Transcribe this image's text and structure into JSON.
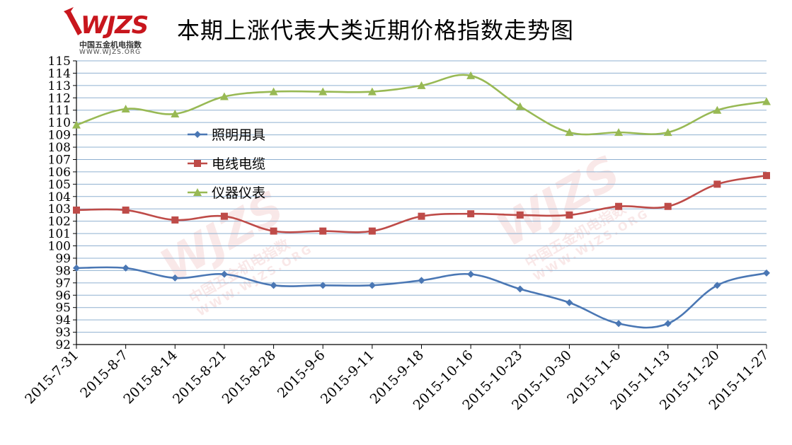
{
  "logo": {
    "wordmark": "WJZS",
    "cn_name": "中国五金机电指数",
    "url": "WWW.WJZS.ORG"
  },
  "colors": {
    "series1": "#4a77b4",
    "series2": "#be4b48",
    "series3": "#98b954",
    "grid": "#8fb0d0",
    "axis": "#000000",
    "brand": "#c8161d"
  },
  "chart_data": {
    "type": "line",
    "title": "本期上涨代表大类近期价格指数走势图",
    "xlabel": "",
    "ylabel": "",
    "ylim": [
      92,
      115
    ],
    "yticks": [
      92,
      93,
      94,
      95,
      96,
      97,
      98,
      99,
      100,
      101,
      102,
      103,
      104,
      105,
      106,
      107,
      108,
      109,
      110,
      111,
      112,
      113,
      114,
      115
    ],
    "grid": true,
    "legend_position": "left-center",
    "categories": [
      "2015-7-31",
      "2015-8-7",
      "2015-8-14",
      "2015-8-21",
      "2015-8-28",
      "2015-9-6",
      "2015-9-11",
      "2015-9-18",
      "2015-10-16",
      "2015-10-23",
      "2015-10-30",
      "2015-11-6",
      "2015-11-13",
      "2015-11-20",
      "2015-11-27"
    ],
    "series": [
      {
        "name": "照明用具",
        "marker": "diamond",
        "color": "#4a77b4",
        "values": [
          98.2,
          98.2,
          97.4,
          97.7,
          96.8,
          96.8,
          96.8,
          97.2,
          97.7,
          96.5,
          95.4,
          93.7,
          93.7,
          96.8,
          97.8
        ]
      },
      {
        "name": "电线电缆",
        "marker": "square",
        "color": "#be4b48",
        "values": [
          102.9,
          102.9,
          102.1,
          102.4,
          101.2,
          101.2,
          101.2,
          102.4,
          102.6,
          102.5,
          102.5,
          103.2,
          103.2,
          105.0,
          105.7
        ]
      },
      {
        "name": "仪器仪表",
        "marker": "triangle",
        "color": "#98b954",
        "values": [
          109.8,
          111.1,
          110.7,
          112.1,
          112.5,
          112.5,
          112.5,
          113.0,
          113.8,
          111.3,
          109.2,
          109.2,
          109.2,
          111.0,
          111.7
        ]
      }
    ]
  }
}
